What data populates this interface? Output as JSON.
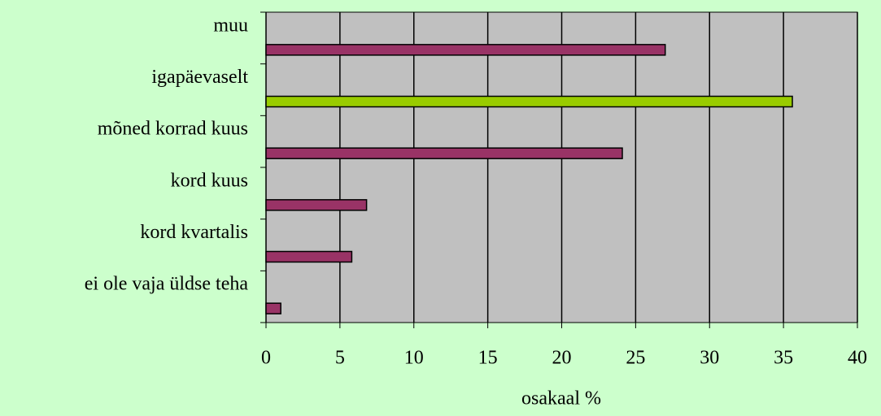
{
  "chart_data": {
    "type": "barh",
    "categories": [
      "muu",
      "igapäevaselt",
      "mõned korrad kuus",
      "kord kuus",
      "kord kvartalis",
      "ei ole vaja üldse teha"
    ],
    "values": [
      27,
      35.6,
      24.1,
      6.8,
      5.8,
      1.0
    ],
    "colors": [
      "#993366",
      "#99cc00",
      "#993366",
      "#993366",
      "#993366",
      "#993366"
    ],
    "xlabel": "osakaal %",
    "xlim": [
      0,
      40
    ],
    "xticks": [
      0,
      5,
      10,
      15,
      20,
      25,
      30,
      35,
      40
    ],
    "grid": true
  }
}
